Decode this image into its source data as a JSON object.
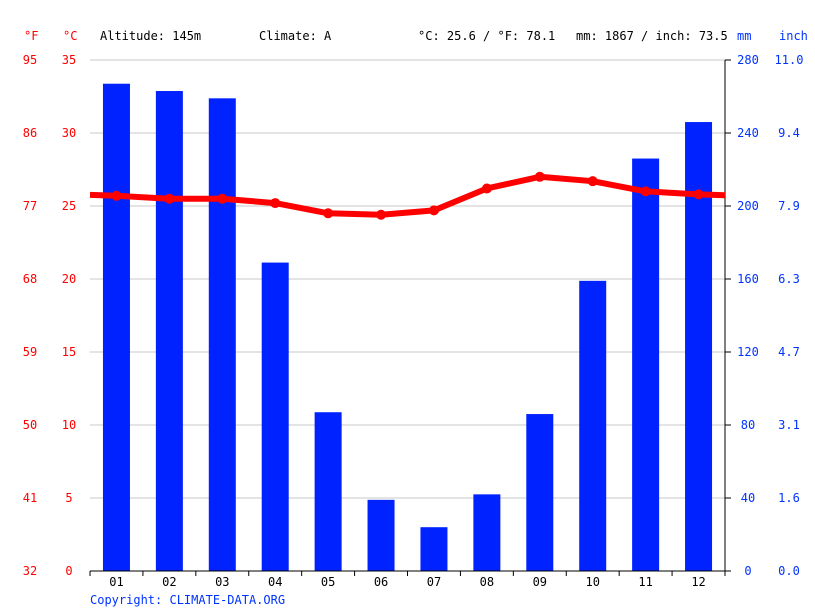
{
  "header": {
    "unit_f": "°F",
    "unit_c": "°C",
    "altitude": "Altitude: 145m",
    "climate": "Climate: A",
    "temp_avg": "°C: 25.6 / °F: 78.1",
    "precip_total": "mm: 1867 / inch: 73.5",
    "unit_mm": "mm",
    "unit_inch": "inch"
  },
  "copyright": "Copyright: CLIMATE-DATA.ORG",
  "colors": {
    "temperature": "#ff0000",
    "precipitation": "#0022ff",
    "grid": "#c8c8c8"
  },
  "chart_data": {
    "type": "bar",
    "categories": [
      "01",
      "02",
      "03",
      "04",
      "05",
      "06",
      "07",
      "08",
      "09",
      "10",
      "11",
      "12"
    ],
    "series": [
      {
        "kind": "bar",
        "axis": "mm",
        "values": [
          267,
          263,
          259,
          169,
          87,
          39,
          24,
          42,
          86,
          159,
          226,
          246
        ]
      },
      {
        "kind": "line",
        "axis": "celsius",
        "values": [
          25.7,
          25.5,
          25.5,
          25.2,
          24.5,
          24.4,
          24.7,
          26.2,
          27.0,
          26.7,
          26.0,
          25.8
        ]
      }
    ],
    "left_axes": {
      "fahrenheit_ticks": [
        "95",
        "86",
        "77",
        "68",
        "59",
        "50",
        "41",
        "32"
      ],
      "celsius_ticks": [
        "35",
        "30",
        "25",
        "20",
        "15",
        "10",
        "5",
        "0"
      ],
      "celsius_range": [
        0,
        35
      ]
    },
    "right_axes": {
      "mm_ticks": [
        "280",
        "240",
        "200",
        "160",
        "120",
        "80",
        "40",
        "0"
      ],
      "inch_ticks": [
        "11.0",
        "9.4",
        "7.9",
        "6.3",
        "4.7",
        "3.1",
        "1.6",
        "0.0"
      ],
      "mm_range": [
        0,
        280
      ]
    },
    "grid": true
  }
}
